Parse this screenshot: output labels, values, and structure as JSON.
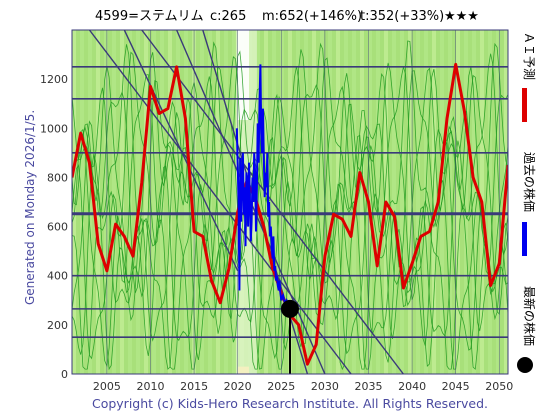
{
  "header": {
    "stock": "4599=ステムリム",
    "current": "c:265",
    "mean": "m:652(+146%)",
    "target": "t:352(+33%)",
    "rating": "★★★"
  },
  "side_caption": "Generated on Monday 2026/1/5.",
  "footer": "Copyright (c) Kids-Hero Research Institute. All Rights Reserved.",
  "legend": [
    {
      "label": "ＡＩ予測",
      "color": "#dd0000"
    },
    {
      "label": "過去の株価",
      "color": "#0000ee"
    },
    {
      "label": "最新の株価",
      "color": "#000000"
    }
  ],
  "colors": {
    "plot_bg": "#a8e07a",
    "grid": "#3a3a7a",
    "green_lines": "#1e9a1e",
    "forecast": "#dd0000",
    "history": "#0000ee",
    "latest": "#000000"
  },
  "chart_data": {
    "type": "line",
    "xlim": [
      2001,
      2051
    ],
    "ylim": [
      0,
      1400
    ],
    "x_ticks": [
      2005,
      2010,
      2015,
      2020,
      2025,
      2030,
      2035,
      2040,
      2045,
      2050
    ],
    "y_ticks": [
      0,
      200,
      400,
      600,
      800,
      1000,
      1200
    ],
    "hlines": [
      150,
      265,
      400,
      652,
      900,
      1120,
      1250
    ],
    "mean_line": 652,
    "series": [
      {
        "name": "ＡＩ予測",
        "x": [
          2001,
          2002,
          2003,
          2004,
          2005,
          2006,
          2007,
          2008,
          2009,
          2010,
          2011,
          2012,
          2013,
          2014,
          2015,
          2016,
          2017,
          2018,
          2019,
          2020,
          2021,
          2022,
          2023,
          2024,
          2025,
          2026,
          2027,
          2028,
          2029,
          2030,
          2031,
          2032,
          2033,
          2034,
          2035,
          2036,
          2037,
          2038,
          2039,
          2040,
          2041,
          2042,
          2043,
          2044,
          2045,
          2046,
          2047,
          2048,
          2049,
          2050,
          2051
        ],
        "values": [
          800,
          980,
          860,
          530,
          420,
          610,
          560,
          480,
          780,
          1170,
          1060,
          1080,
          1250,
          1040,
          580,
          560,
          380,
          290,
          430,
          660,
          780,
          720,
          600,
          430,
          330,
          240,
          200,
          40,
          120,
          480,
          650,
          630,
          560,
          820,
          700,
          440,
          700,
          640,
          350,
          450,
          560,
          580,
          700,
          1040,
          1260,
          1070,
          800,
          700,
          360,
          450,
          850
        ]
      },
      {
        "name": "過去の株価",
        "x": [
          2019.9,
          2020.0,
          2020.1,
          2020.2,
          2020.3,
          2020.4,
          2020.5,
          2020.6,
          2020.7,
          2020.8,
          2020.9,
          2021.0,
          2021.1,
          2021.2,
          2021.3,
          2021.4,
          2021.5,
          2021.6,
          2021.7,
          2021.8,
          2021.9,
          2022.0,
          2022.1,
          2022.2,
          2022.3,
          2022.4,
          2022.5,
          2022.6,
          2022.7,
          2022.8,
          2022.9,
          2023.0,
          2023.1,
          2023.2,
          2023.3,
          2023.4,
          2023.5,
          2023.6,
          2023.7,
          2023.8,
          2023.9,
          2024.0,
          2024.1,
          2024.2,
          2024.3,
          2024.4,
          2024.5,
          2024.6,
          2024.7,
          2024.8,
          2024.9,
          2025.0,
          2025.2,
          2025.4,
          2025.6,
          2025.8,
          2026.0
        ],
        "values": [
          1000,
          850,
          700,
          340,
          880,
          620,
          800,
          900,
          650,
          760,
          520,
          820,
          780,
          600,
          860,
          720,
          540,
          620,
          800,
          700,
          900,
          820,
          580,
          760,
          1020,
          860,
          1100,
          1260,
          980,
          900,
          1080,
          880,
          720,
          820,
          760,
          900,
          640,
          700,
          560,
          600,
          520,
          470,
          560,
          420,
          440,
          380,
          400,
          360,
          340,
          380,
          330,
          300,
          320,
          290,
          300,
          280,
          265
        ]
      }
    ],
    "latest_point": {
      "x": 2026.0,
      "y": 265
    }
  }
}
